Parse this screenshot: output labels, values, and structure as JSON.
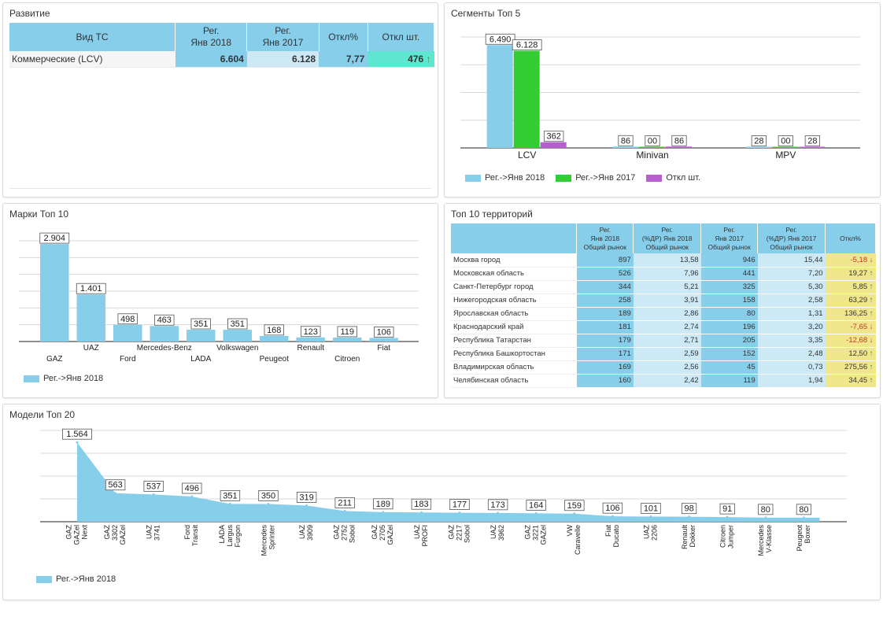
{
  "colors": {
    "reg2018": "#87ceeb",
    "reg2017": "#33cc33",
    "diff": "#b65fcf",
    "yellow": "#f0e68c",
    "teal": "#5ee6d0"
  },
  "development": {
    "title": "Развитие",
    "headers": [
      "Вид ТС",
      "Рег.\nЯнв 2018",
      "Рег.\nЯнв 2017",
      "Откл%",
      "Откл шт."
    ],
    "row": {
      "name": "Коммерческие (LCV)",
      "reg2018": "6.604",
      "reg2017": "6.128",
      "pct": "7,77",
      "diff": "476",
      "arrow": "↑"
    }
  },
  "segments": {
    "title": "Сегменты Топ 5",
    "legend": [
      "Рег.->Янв 2018",
      "Рег.->Янв 2017",
      "Откл шт."
    ],
    "chart_data": {
      "type": "bar",
      "categories": [
        "LCV",
        "Minivan",
        "MPV"
      ],
      "series": [
        {
          "name": "Рег.->Янв 2018",
          "values": [
            6490,
            86,
            28
          ],
          "labels": [
            "6.490",
            "86",
            "28"
          ]
        },
        {
          "name": "Рег.->Янв 2017",
          "values": [
            6128,
            0,
            0
          ],
          "labels": [
            "6.128",
            "00",
            "00"
          ]
        },
        {
          "name": "Откл шт.",
          "values": [
            362,
            86,
            28
          ],
          "labels": [
            "362",
            "86",
            "28"
          ]
        }
      ]
    }
  },
  "brands": {
    "title": "Марки Топ 10",
    "legend": [
      "Рег.->Янв 2018"
    ],
    "chart_data": {
      "type": "bar",
      "categories": [
        "GAZ",
        "UAZ",
        "Ford",
        "Mercedes-Benz",
        "LADA",
        "Volkswagen",
        "Peugeot",
        "Renault",
        "Citroen",
        "Fiat"
      ],
      "series": [
        {
          "name": "Рег.->Янв 2018",
          "values": [
            2904,
            1401,
            498,
            463,
            351,
            351,
            168,
            123,
            119,
            106
          ],
          "labels": [
            "2.904",
            "1.401",
            "498",
            "463",
            "351",
            "351",
            "168",
            "123",
            "119",
            "106"
          ]
        }
      ]
    }
  },
  "territories": {
    "title": "Топ 10 территорий",
    "headers": [
      "",
      "Рег.\nЯнв 2018\nОбщий рынок",
      "Рег.\n(%ДР) Янв 2018\nОбщий рынок",
      "Рег.\nЯнв 2017\nОбщий рынок",
      "Рег.\n(%ДР) Янв 2017\nОбщий рынок",
      "Откл%"
    ],
    "rows": [
      {
        "name": "Москва город",
        "r18": "897",
        "p18": "13,58",
        "r17": "946",
        "p17": "15,44",
        "pct": "-5,18",
        "dir": "down"
      },
      {
        "name": "Московская область",
        "r18": "526",
        "p18": "7,96",
        "r17": "441",
        "p17": "7,20",
        "pct": "19,27",
        "dir": "up"
      },
      {
        "name": "Санкт-Петербург город",
        "r18": "344",
        "p18": "5,21",
        "r17": "325",
        "p17": "5,30",
        "pct": "5,85",
        "dir": "up"
      },
      {
        "name": "Нижегородская область",
        "r18": "258",
        "p18": "3,91",
        "r17": "158",
        "p17": "2,58",
        "pct": "63,29",
        "dir": "up"
      },
      {
        "name": "Ярославская область",
        "r18": "189",
        "p18": "2,86",
        "r17": "80",
        "p17": "1,31",
        "pct": "136,25",
        "dir": "up"
      },
      {
        "name": "Краснодарский край",
        "r18": "181",
        "p18": "2,74",
        "r17": "196",
        "p17": "3,20",
        "pct": "-7,65",
        "dir": "down"
      },
      {
        "name": "Республика Татарстан",
        "r18": "179",
        "p18": "2,71",
        "r17": "205",
        "p17": "3,35",
        "pct": "-12,68",
        "dir": "down"
      },
      {
        "name": "Республика Башкортостан",
        "r18": "171",
        "p18": "2,59",
        "r17": "152",
        "p17": "2,48",
        "pct": "12,50",
        "dir": "up"
      },
      {
        "name": "Владимирская область",
        "r18": "169",
        "p18": "2,56",
        "r17": "45",
        "p17": "0,73",
        "pct": "275,56",
        "dir": "up"
      },
      {
        "name": "Челябинская область",
        "r18": "160",
        "p18": "2,42",
        "r17": "119",
        "p17": "1,94",
        "pct": "34,45",
        "dir": "up"
      }
    ]
  },
  "models": {
    "title": "Модели Топ 20",
    "legend": [
      "Рег.->Янв 2018"
    ],
    "chart_data": {
      "type": "area",
      "categories": [
        "GAZ GAZel Next",
        "GAZ 3302 GAZel",
        "UAZ 3741",
        "Ford Transit",
        "LADA Largus Furgon",
        "Mercedes Sprinter",
        "UAZ 3909",
        "GAZ 2752 Sobol",
        "GAZ 2705 GAZel",
        "UAZ PROFI",
        "GAZ 2217 Sobol",
        "UAZ 3962",
        "GAZ 3221 GAZel",
        "VW Caravelle",
        "Fiat Ducato",
        "UAZ 2206",
        "Renault Dokker",
        "Citroen Jumper",
        "Mercedes V-Klasse",
        "Peugeot Boxer"
      ],
      "series": [
        {
          "name": "Рег.->Янв 2018",
          "values": [
            1564,
            563,
            537,
            496,
            351,
            350,
            319,
            211,
            189,
            183,
            177,
            173,
            164,
            159,
            106,
            101,
            98,
            91,
            80,
            80
          ],
          "labels": [
            "1.564",
            "563",
            "537",
            "496",
            "351",
            "350",
            "319",
            "211",
            "189",
            "183",
            "177",
            "173",
            "164",
            "159",
            "106",
            "101",
            "98",
            "91",
            "80",
            "80"
          ]
        }
      ]
    }
  }
}
